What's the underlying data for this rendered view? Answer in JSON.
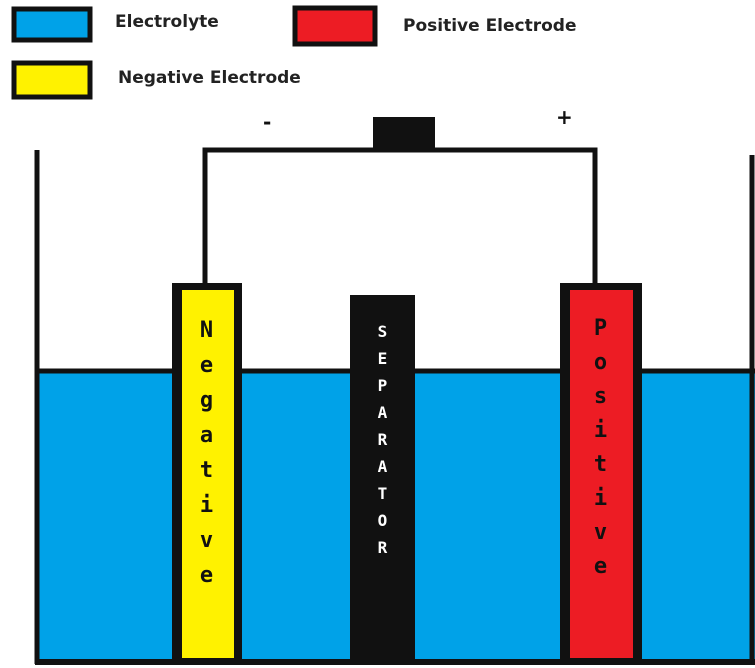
{
  "legend": [
    {
      "label": "Electrolyte",
      "color": "#00a2e8"
    },
    {
      "label": "Positive Electrode",
      "color": "#ed1c24"
    },
    {
      "label": "Negative Electrode",
      "color": "#fff200"
    }
  ],
  "terminals": {
    "negative": "-",
    "positive": "+"
  },
  "electrodes": {
    "negative": "Negative",
    "separator": "SEPARATOR",
    "positive": "Positive"
  }
}
